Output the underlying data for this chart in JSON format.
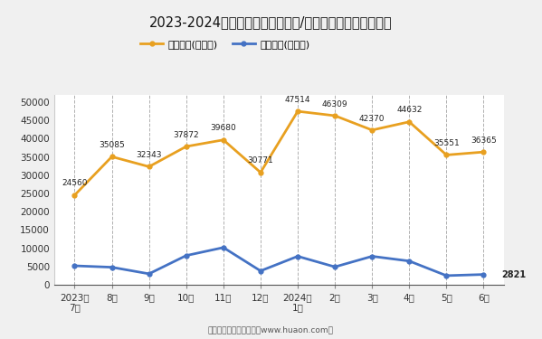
{
  "title": "2023-2024年安庆市（境内目的地/货源地）进、出口额统计",
  "x_labels": [
    "2023年\n7月",
    "8月",
    "9月",
    "10月",
    "11月",
    "12月",
    "2024年\n1月",
    "2月",
    "3月",
    "4月",
    "5月",
    "6月"
  ],
  "export_values": [
    24560,
    35085,
    32343,
    37872,
    39680,
    30771,
    47514,
    46309,
    42370,
    44632,
    35551,
    36365
  ],
  "import_values": [
    5200,
    4800,
    3000,
    8000,
    10200,
    3800,
    7800,
    4900,
    7800,
    6500,
    2500,
    2821
  ],
  "export_label": "出口总额(万美元)",
  "import_label": "进口总额(万美元)",
  "export_color": "#E8A020",
  "import_color": "#4472C4",
  "ylim": [
    0,
    52000
  ],
  "yticks": [
    0,
    5000,
    10000,
    15000,
    20000,
    25000,
    30000,
    35000,
    40000,
    45000,
    50000
  ],
  "bg_color": "#f0f0f0",
  "plot_bg_color": "#ffffff",
  "grid_color": "#b0b0b0",
  "footer_text": "制图：华经产业研究院（www.huaon.com）"
}
